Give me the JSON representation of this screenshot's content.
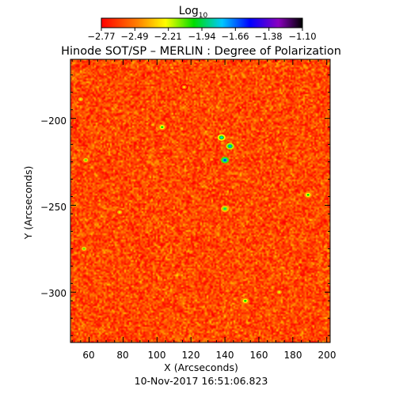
{
  "colorbar": {
    "label_main": "Log",
    "label_sub": "10",
    "tick_labels": [
      "−2.77",
      "−2.49",
      "−2.21",
      "−1.94",
      "−1.66",
      "−1.38",
      "−1.10"
    ],
    "range": [
      -2.77,
      -1.1
    ],
    "colors": [
      "#ff0000",
      "#ff8000",
      "#ffff00",
      "#00dd00",
      "#00c8ff",
      "#0000ff",
      "#8a00c0",
      "#000000"
    ]
  },
  "chart_data": {
    "type": "heatmap",
    "title": "Hinode SOT/SP – MERLIN : Degree of Polarization",
    "xlabel": "X (Arcseconds)",
    "ylabel": "Y (Arcseconds)",
    "subtitle": "10-Nov-2017 16:51:06.823",
    "xlim": [
      49,
      202
    ],
    "ylim": [
      -329,
      -166
    ],
    "x_ticks": [
      60,
      80,
      100,
      120,
      140,
      160,
      180,
      200
    ],
    "y_ticks": [
      -200,
      -250,
      -300
    ],
    "x_tick_labels": [
      "60",
      "80",
      "100",
      "120",
      "140",
      "160",
      "180",
      "200"
    ],
    "y_tick_labels": [
      "−200",
      "−250",
      "−300"
    ],
    "value_range": [
      -2.77,
      -1.1
    ],
    "value_label": "Log10 degree of polarization",
    "colormap": [
      "#ff0000",
      "#ff8000",
      "#ffff00",
      "#00dd00",
      "#00c8ff",
      "#0000ff",
      "#8a00c0",
      "#000000"
    ],
    "background_level": -2.6,
    "features": [
      {
        "x": 140,
        "y": -224,
        "peak": -1.6
      },
      {
        "x": 143,
        "y": -216,
        "peak": -1.7
      },
      {
        "x": 138,
        "y": -211,
        "peak": -1.8
      },
      {
        "x": 140,
        "y": -252,
        "peak": -1.9
      },
      {
        "x": 152,
        "y": -305,
        "peak": -2.0
      },
      {
        "x": 103,
        "y": -205,
        "peak": -2.0
      },
      {
        "x": 58,
        "y": -224,
        "peak": -2.1
      },
      {
        "x": 57,
        "y": -275,
        "peak": -2.1
      },
      {
        "x": 189,
        "y": -244,
        "peak": -2.0
      },
      {
        "x": 55,
        "y": -189,
        "peak": -2.2
      },
      {
        "x": 172,
        "y": -300,
        "peak": -2.2
      },
      {
        "x": 78,
        "y": -254,
        "peak": -2.2
      },
      {
        "x": 116,
        "y": -182,
        "peak": -2.3
      }
    ]
  }
}
